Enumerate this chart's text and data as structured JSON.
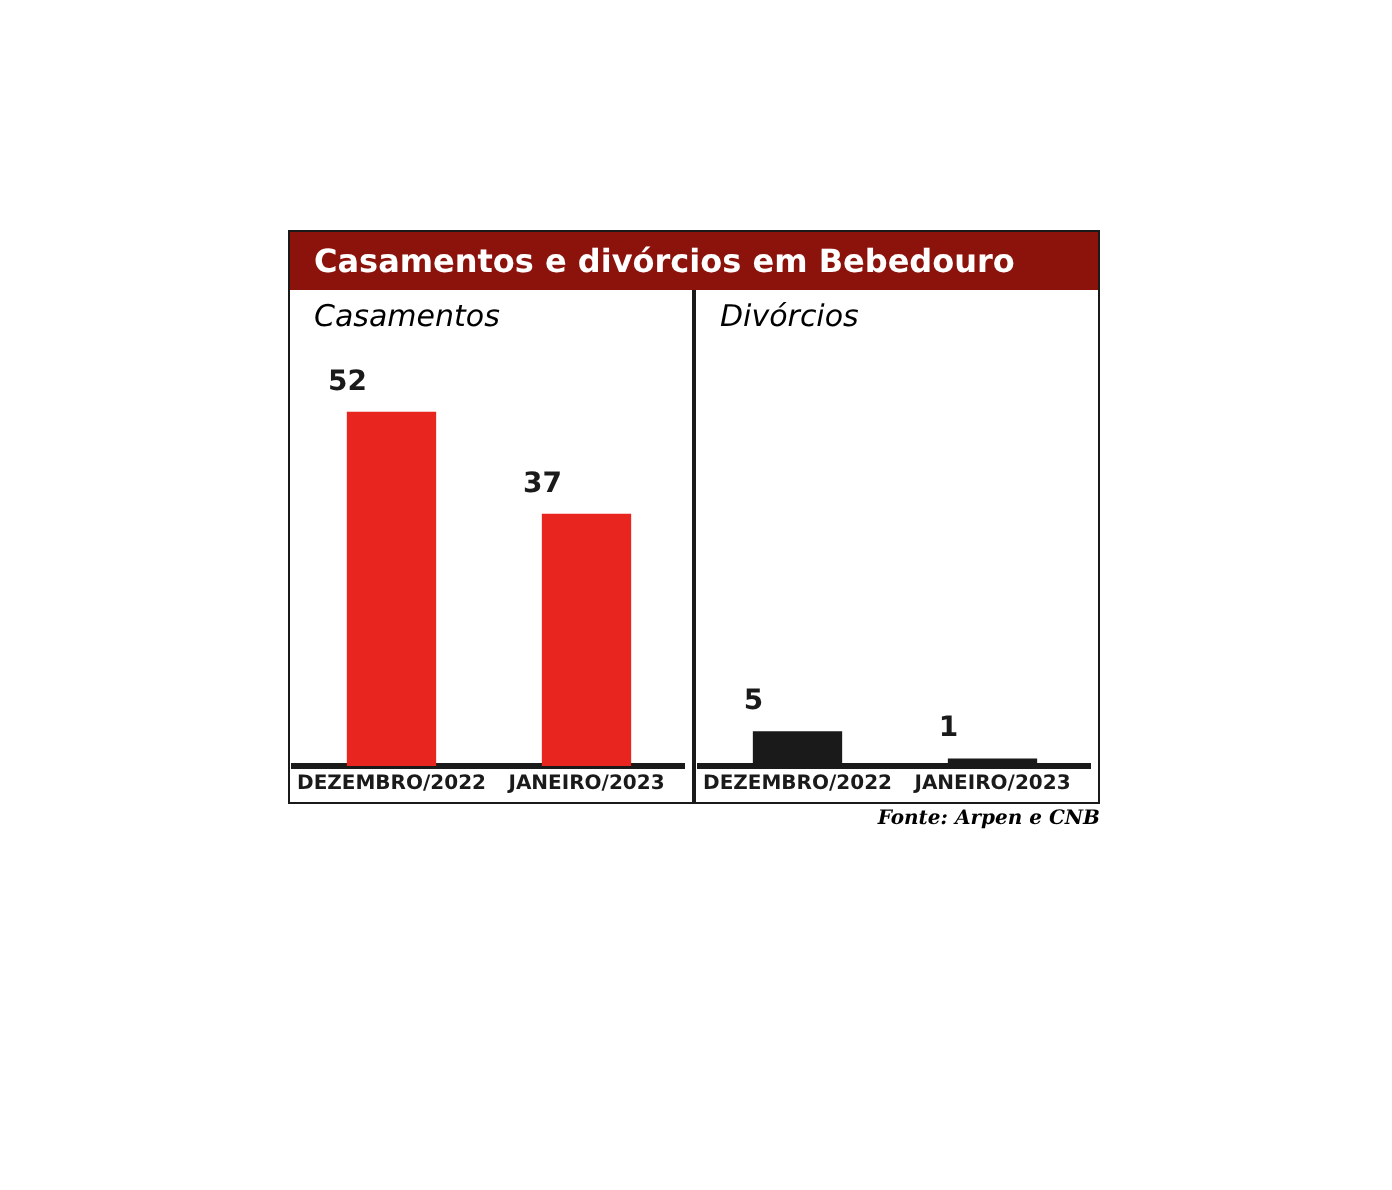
{
  "chart_data": [
    {
      "type": "bar",
      "title": "Casamentos e divórcios em Bebedouro",
      "subtitle": "Casamentos",
      "categories": [
        "DEZEMBRO/2022",
        "JANEIRO/2023"
      ],
      "values": [
        52,
        37
      ],
      "color": "#e8251f",
      "data_labels": true
    },
    {
      "type": "bar",
      "subtitle": "Divórcios",
      "categories": [
        "DEZEMBRO/2022",
        "JANEIRO/2023"
      ],
      "values": [
        5,
        1
      ],
      "color": "#1a1a1a",
      "data_labels": true,
      "annotations": [
        "Fonte: Arpen e CNB"
      ]
    }
  ]
}
